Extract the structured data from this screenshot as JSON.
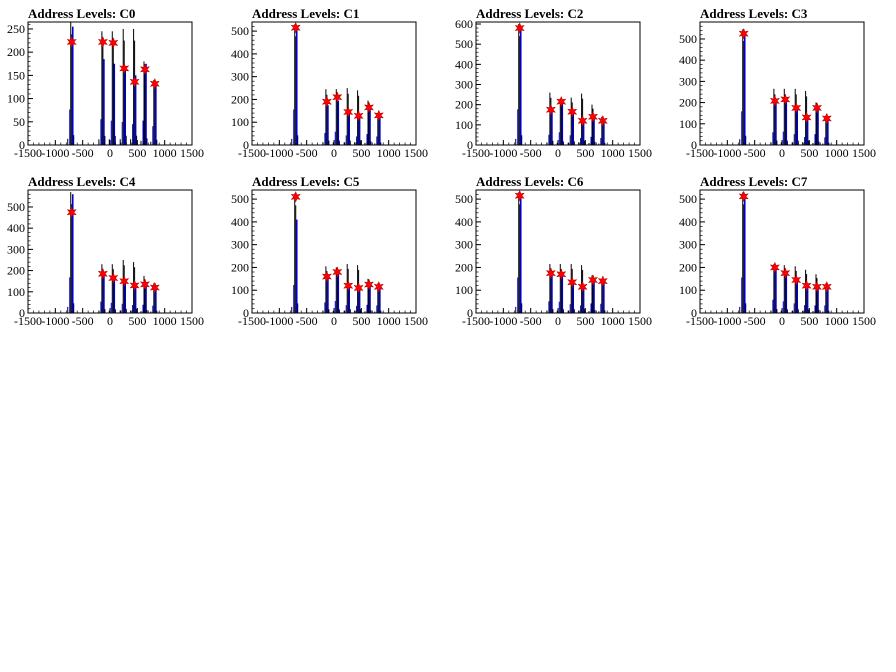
{
  "chart_data": [
    {
      "type": "bar",
      "title": "Address Levels: C0",
      "xlim": [
        -1500,
        1500
      ],
      "xticks": [
        "-1500",
        "-1000",
        "-500",
        "0",
        "500",
        "1000",
        "1500"
      ],
      "ylim": [
        0,
        265
      ],
      "yticks": [
        "0",
        "50",
        "100",
        "150",
        "200",
        "250"
      ],
      "peaks": [
        {
          "x": -700,
          "y": 222,
          "h": 265,
          "blue": 255
        },
        {
          "x": -130,
          "y": 222,
          "h": 245,
          "blue": 185
        },
        {
          "x": 60,
          "y": 220,
          "h": 245,
          "blue": 175
        },
        {
          "x": 260,
          "y": 165,
          "h": 250,
          "blue": 165
        },
        {
          "x": 450,
          "y": 136,
          "h": 250,
          "blue": 150
        },
        {
          "x": 640,
          "y": 163,
          "h": 180,
          "blue": 175
        },
        {
          "x": 820,
          "y": 132,
          "h": 140,
          "blue": 135
        }
      ]
    },
    {
      "type": "bar",
      "title": "Address Levels: C1",
      "xlim": [
        -1500,
        1500
      ],
      "xticks": [
        "-1500",
        "-1000",
        "-500",
        "0",
        "500",
        "1000",
        "1500"
      ],
      "ylim": [
        0,
        540
      ],
      "yticks": [
        "0",
        "100",
        "200",
        "300",
        "400",
        "500"
      ],
      "peaks": [
        {
          "x": -700,
          "y": 515,
          "h": 530,
          "blue": 520
        },
        {
          "x": -130,
          "y": 190,
          "h": 245,
          "blue": 175
        },
        {
          "x": 60,
          "y": 210,
          "h": 245,
          "blue": 195
        },
        {
          "x": 260,
          "y": 145,
          "h": 250,
          "blue": 140
        },
        {
          "x": 450,
          "y": 128,
          "h": 240,
          "blue": 125
        },
        {
          "x": 640,
          "y": 165,
          "h": 195,
          "blue": 160
        },
        {
          "x": 820,
          "y": 130,
          "h": 140,
          "blue": 125
        }
      ]
    },
    {
      "type": "bar",
      "title": "Address Levels: C2",
      "xlim": [
        -1500,
        1500
      ],
      "xticks": [
        "-1500",
        "-1000",
        "-500",
        "0",
        "500",
        "1000",
        "1500"
      ],
      "ylim": [
        0,
        610
      ],
      "yticks": [
        "0",
        "100",
        "200",
        "300",
        "400",
        "500",
        "600"
      ],
      "peaks": [
        {
          "x": -700,
          "y": 580,
          "h": 600,
          "blue": 590
        },
        {
          "x": -130,
          "y": 175,
          "h": 260,
          "blue": 170
        },
        {
          "x": 60,
          "y": 215,
          "h": 230,
          "blue": 210
        },
        {
          "x": 260,
          "y": 165,
          "h": 235,
          "blue": 160
        },
        {
          "x": 450,
          "y": 120,
          "h": 255,
          "blue": 115
        },
        {
          "x": 640,
          "y": 140,
          "h": 200,
          "blue": 135
        },
        {
          "x": 820,
          "y": 120,
          "h": 140,
          "blue": 115
        }
      ]
    },
    {
      "type": "bar",
      "title": "Address Levels: C3",
      "xlim": [
        -1500,
        1500
      ],
      "xticks": [
        "-1500",
        "-1000",
        "-500",
        "0",
        "500",
        "1000",
        "1500"
      ],
      "ylim": [
        0,
        580
      ],
      "yticks": [
        "0",
        "100",
        "200",
        "300",
        "400",
        "500"
      ],
      "peaks": [
        {
          "x": -700,
          "y": 525,
          "h": 545,
          "blue": 530
        },
        {
          "x": -130,
          "y": 208,
          "h": 265,
          "blue": 200
        },
        {
          "x": 60,
          "y": 215,
          "h": 265,
          "blue": 210
        },
        {
          "x": 260,
          "y": 175,
          "h": 265,
          "blue": 170
        },
        {
          "x": 450,
          "y": 130,
          "h": 255,
          "blue": 125
        },
        {
          "x": 640,
          "y": 175,
          "h": 200,
          "blue": 170
        },
        {
          "x": 820,
          "y": 125,
          "h": 140,
          "blue": 120
        }
      ]
    },
    {
      "type": "bar",
      "title": "Address Levels: C4",
      "xlim": [
        -1500,
        1500
      ],
      "xticks": [
        "-1500",
        "-1000",
        "-500",
        "0",
        "500",
        "1000",
        "1500"
      ],
      "ylim": [
        0,
        580
      ],
      "yticks": [
        "0",
        "100",
        "200",
        "300",
        "400",
        "500"
      ],
      "peaks": [
        {
          "x": -700,
          "y": 475,
          "h": 570,
          "blue": 560
        },
        {
          "x": -130,
          "y": 185,
          "h": 230,
          "blue": 180
        },
        {
          "x": 60,
          "y": 165,
          "h": 230,
          "blue": 160
        },
        {
          "x": 260,
          "y": 150,
          "h": 250,
          "blue": 145
        },
        {
          "x": 450,
          "y": 130,
          "h": 240,
          "blue": 125
        },
        {
          "x": 640,
          "y": 135,
          "h": 175,
          "blue": 130
        },
        {
          "x": 820,
          "y": 120,
          "h": 140,
          "blue": 115
        }
      ]
    },
    {
      "type": "bar",
      "title": "Address Levels: C5",
      "xlim": [
        -1500,
        1500
      ],
      "xticks": [
        "-1500",
        "-1000",
        "-500",
        "0",
        "500",
        "1000",
        "1500"
      ],
      "ylim": [
        0,
        540
      ],
      "yticks": [
        "0",
        "100",
        "200",
        "300",
        "400",
        "500"
      ],
      "peaks": [
        {
          "x": -700,
          "y": 510,
          "h": 525,
          "blue": 410
        },
        {
          "x": -130,
          "y": 160,
          "h": 205,
          "blue": 155
        },
        {
          "x": 60,
          "y": 180,
          "h": 200,
          "blue": 175
        },
        {
          "x": 260,
          "y": 120,
          "h": 215,
          "blue": 115
        },
        {
          "x": 450,
          "y": 110,
          "h": 210,
          "blue": 105
        },
        {
          "x": 640,
          "y": 125,
          "h": 150,
          "blue": 120
        },
        {
          "x": 820,
          "y": 115,
          "h": 130,
          "blue": 110
        }
      ]
    },
    {
      "type": "bar",
      "title": "Address Levels: C6",
      "xlim": [
        -1500,
        1500
      ],
      "xticks": [
        "-1500",
        "-1000",
        "-500",
        "0",
        "500",
        "1000",
        "1500"
      ],
      "ylim": [
        0,
        540
      ],
      "yticks": [
        "0",
        "100",
        "200",
        "300",
        "400",
        "500"
      ],
      "peaks": [
        {
          "x": -700,
          "y": 515,
          "h": 530,
          "blue": 520
        },
        {
          "x": -130,
          "y": 175,
          "h": 215,
          "blue": 170
        },
        {
          "x": 60,
          "y": 170,
          "h": 215,
          "blue": 165
        },
        {
          "x": 260,
          "y": 135,
          "h": 215,
          "blue": 130
        },
        {
          "x": 450,
          "y": 115,
          "h": 210,
          "blue": 110
        },
        {
          "x": 640,
          "y": 145,
          "h": 165,
          "blue": 140
        },
        {
          "x": 820,
          "y": 140,
          "h": 150,
          "blue": 135
        }
      ]
    },
    {
      "type": "bar",
      "title": "Address Levels: C7",
      "xlim": [
        -1500,
        1500
      ],
      "xticks": [
        "-1500",
        "-1000",
        "-500",
        "0",
        "500",
        "1000",
        "1500"
      ],
      "ylim": [
        0,
        540
      ],
      "yticks": [
        "0",
        "100",
        "200",
        "300",
        "400",
        "500"
      ],
      "peaks": [
        {
          "x": -700,
          "y": 512,
          "h": 530,
          "blue": 520
        },
        {
          "x": -130,
          "y": 200,
          "h": 215,
          "blue": 195
        },
        {
          "x": 60,
          "y": 175,
          "h": 210,
          "blue": 170
        },
        {
          "x": 260,
          "y": 145,
          "h": 205,
          "blue": 140
        },
        {
          "x": 450,
          "y": 120,
          "h": 190,
          "blue": 115
        },
        {
          "x": 640,
          "y": 115,
          "h": 170,
          "blue": 110
        },
        {
          "x": 820,
          "y": 115,
          "h": 130,
          "blue": 110
        }
      ]
    }
  ],
  "colors": {
    "histogram_black": "#000000",
    "histogram_blue": "#0000cc",
    "marker_red": "#ff0000",
    "frame": "#000000"
  }
}
